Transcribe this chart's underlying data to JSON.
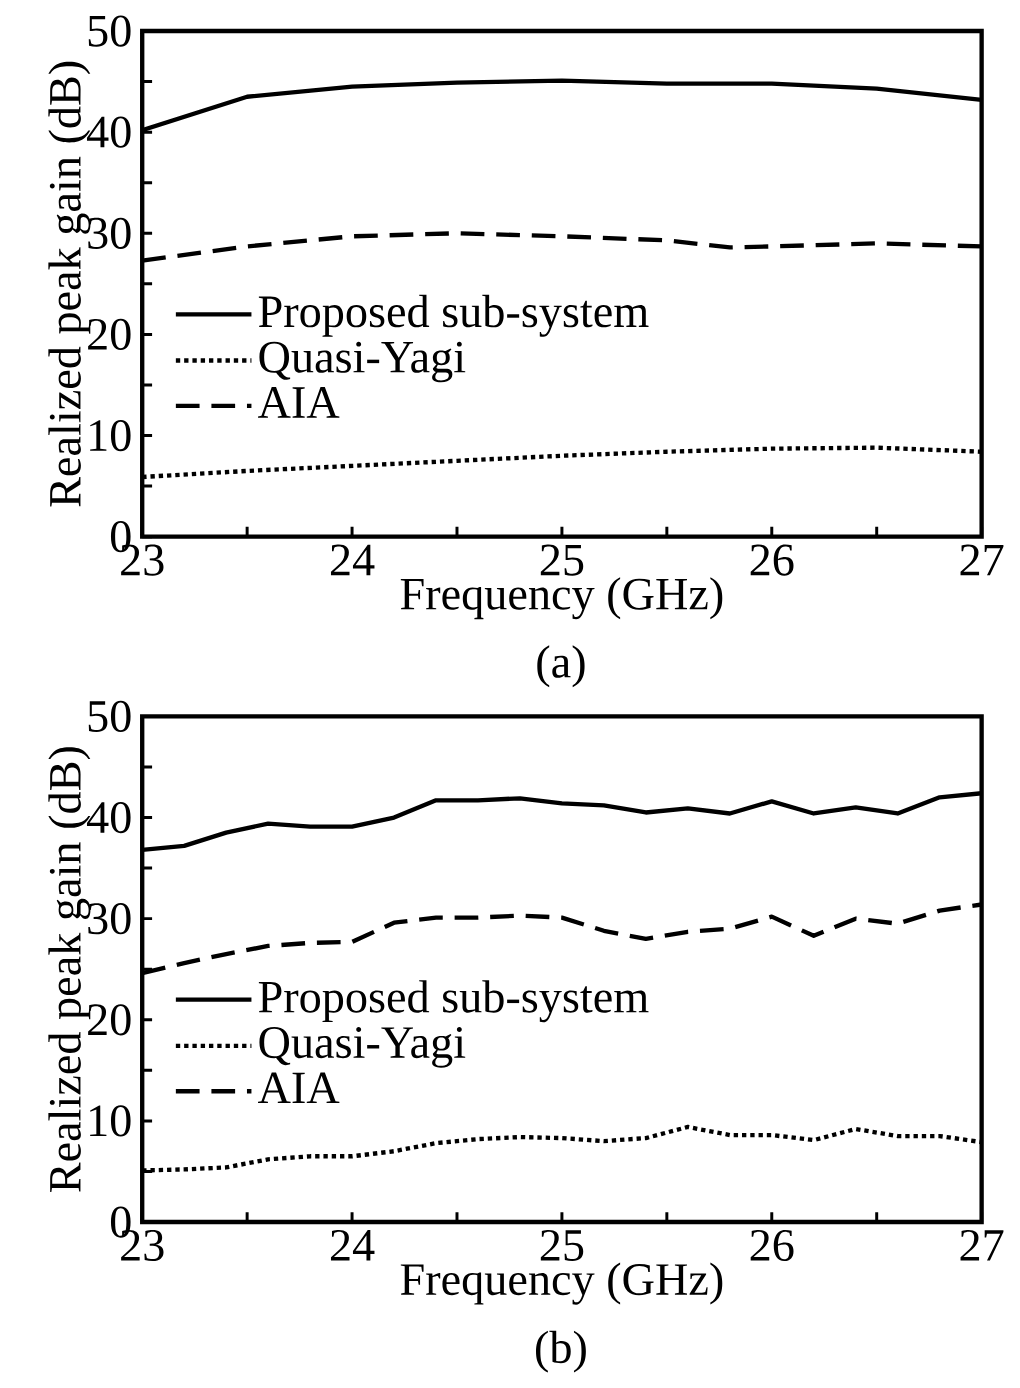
{
  "chart_data": [
    {
      "type": "line",
      "xlabel": "Frequency (GHz)",
      "ylabel": "Realized peak gain (dB)",
      "annotations": [
        "(a)"
      ],
      "xlim": [
        23,
        27
      ],
      "ylim": [
        0,
        50
      ],
      "xticks": [
        23,
        {
          "value": 23.5,
          "label": null
        },
        24,
        {
          "value": 24.5,
          "label": null
        },
        25,
        {
          "value": 25.5,
          "label": null
        },
        26,
        {
          "value": 26.5,
          "label": null
        },
        27
      ],
      "yticks": [
        0,
        {
          "value": 5,
          "label": null
        },
        10,
        {
          "value": 15,
          "label": null
        },
        20,
        {
          "value": 25,
          "label": null
        },
        30,
        {
          "value": 35,
          "label": null
        },
        40,
        {
          "value": 45,
          "label": null
        },
        50
      ],
      "legend": "left",
      "grid": false,
      "marker": "none",
      "series": [
        {
          "name": "Proposed sub-system",
          "color": "#000000",
          "line_style": "solid",
          "x": [
            23,
            23.5,
            24,
            24.5,
            25,
            25.5,
            26,
            26.5,
            27
          ],
          "values": [
            40.2,
            43.5,
            44.5,
            44.9,
            45.1,
            44.8,
            44.8,
            44.3,
            43.2
          ]
        },
        {
          "name": "Quasi-Yagi",
          "color": "#000000",
          "line_style": "dotted",
          "x": [
            23,
            23.5,
            24,
            24.5,
            25,
            25.5,
            26,
            26.5,
            27
          ],
          "values": [
            5.9,
            6.5,
            7.0,
            7.5,
            8.0,
            8.4,
            8.7,
            8.8,
            8.4
          ]
        },
        {
          "name": "AIA",
          "color": "#000000",
          "line_style": "dashed",
          "x": [
            23,
            23.5,
            24,
            24.5,
            25,
            25.5,
            25.8,
            26,
            26.5,
            27
          ],
          "values": [
            27.3,
            28.7,
            29.7,
            30.0,
            29.7,
            29.3,
            28.6,
            28.7,
            29.0,
            28.7
          ]
        }
      ]
    },
    {
      "type": "line",
      "xlabel": "Frequency (GHz)",
      "ylabel": "Realized peak gain (dB)",
      "annotations": [
        "(b)"
      ],
      "xlim": [
        23,
        27
      ],
      "ylim": [
        0,
        50
      ],
      "xticks": [
        23,
        {
          "value": 23.5,
          "label": null
        },
        24,
        {
          "value": 24.5,
          "label": null
        },
        25,
        {
          "value": 25.5,
          "label": null
        },
        26,
        {
          "value": 26.5,
          "label": null
        },
        27
      ],
      "yticks": [
        0,
        {
          "value": 5,
          "label": null
        },
        10,
        {
          "value": 15,
          "label": null
        },
        20,
        {
          "value": 25,
          "label": null
        },
        30,
        {
          "value": 35,
          "label": null
        },
        40,
        {
          "value": 45,
          "label": null
        },
        50
      ],
      "legend": "left",
      "grid": false,
      "marker": "none",
      "series": [
        {
          "name": "Proposed sub-system",
          "color": "#000000",
          "line_style": "solid",
          "x": [
            23,
            23.2,
            23.4,
            23.6,
            23.8,
            24,
            24.2,
            24.4,
            24.6,
            24.8,
            25,
            25.2,
            25.4,
            25.6,
            25.8,
            26,
            26.2,
            26.4,
            26.6,
            26.8,
            27
          ],
          "values": [
            36.8,
            37.2,
            38.5,
            39.4,
            39.1,
            39.1,
            40.0,
            41.7,
            41.7,
            41.9,
            41.4,
            41.2,
            40.5,
            40.9,
            40.4,
            41.6,
            40.4,
            41.0,
            40.4,
            42.0,
            42.4
          ]
        },
        {
          "name": "Quasi-Yagi",
          "color": "#000000",
          "line_style": "dotted",
          "x": [
            23,
            23.2,
            23.4,
            23.6,
            23.8,
            24,
            24.2,
            24.4,
            24.6,
            24.8,
            25,
            25.2,
            25.4,
            25.6,
            25.8,
            26,
            26.2,
            26.4,
            26.6,
            26.8,
            27
          ],
          "values": [
            5.1,
            5.2,
            5.4,
            6.2,
            6.5,
            6.5,
            7.0,
            7.8,
            8.2,
            8.4,
            8.3,
            8.0,
            8.3,
            9.4,
            8.6,
            8.6,
            8.1,
            9.2,
            8.5,
            8.5,
            7.9
          ]
        },
        {
          "name": "AIA",
          "color": "#000000",
          "line_style": "dashed",
          "x": [
            23,
            23.2,
            23.4,
            23.6,
            23.8,
            24,
            24.2,
            24.4,
            24.6,
            24.8,
            25,
            25.2,
            25.4,
            25.6,
            25.8,
            26,
            26.2,
            26.4,
            26.6,
            26.8,
            27
          ],
          "values": [
            24.6,
            25.6,
            26.5,
            27.3,
            27.6,
            27.7,
            29.6,
            30.1,
            30.1,
            30.3,
            30.1,
            28.8,
            28.0,
            28.7,
            29.0,
            30.2,
            28.3,
            30.0,
            29.5,
            30.8,
            31.4
          ]
        }
      ]
    }
  ]
}
